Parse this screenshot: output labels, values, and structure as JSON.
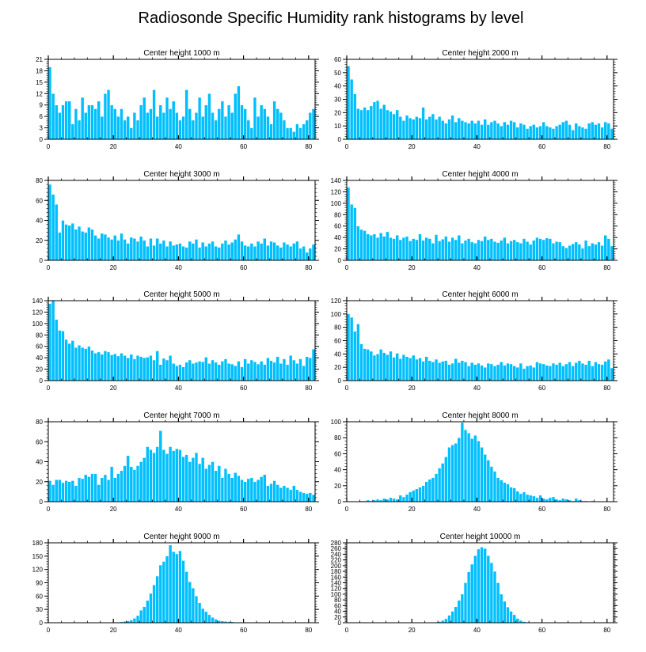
{
  "figure": {
    "title": "Radiosonde Specific Humidity rank histograms by level",
    "bar_color": "#00bfff",
    "bar_outline_color": "#ffffff"
  },
  "chart_data": [
    {
      "type": "bar",
      "title": "Center height 1000 m",
      "xlabel": "",
      "ylabel": "",
      "xlim": [
        0,
        82
      ],
      "ylim": [
        0,
        21
      ],
      "xticks": [
        0,
        20,
        40,
        60,
        80
      ],
      "yticks": [
        0,
        3,
        6,
        9,
        12,
        15,
        18,
        21
      ],
      "ytick_side": "left",
      "ytick_labels": [
        "0",
        "3",
        "6",
        "9",
        "12",
        "15",
        "18",
        "21"
      ],
      "xtick_labels": [
        "0",
        "20",
        "40",
        "60",
        "80"
      ],
      "values": [
        19,
        12,
        9,
        7,
        9,
        10,
        10,
        4,
        8,
        5,
        11,
        7,
        9,
        9,
        8,
        10,
        6,
        12,
        13,
        9,
        8,
        6,
        8,
        5,
        6,
        3,
        7,
        5,
        9,
        11,
        7,
        8,
        13,
        6,
        9,
        7,
        11,
        8,
        10,
        7,
        5,
        6,
        13,
        8,
        5,
        7,
        11,
        6,
        9,
        12,
        7,
        5,
        8,
        10,
        6,
        9,
        7,
        12,
        14,
        9,
        8,
        5,
        3,
        11,
        6,
        9,
        8,
        6,
        4,
        10,
        8,
        7,
        5,
        3,
        3,
        2,
        4,
        3,
        4,
        5,
        7,
        8
      ]
    },
    {
      "type": "bar",
      "title": "Center height 2000 m",
      "xlabel": "",
      "ylabel": "",
      "xlim": [
        0,
        82
      ],
      "ylim": [
        0,
        60
      ],
      "xticks": [
        0,
        20,
        40,
        60,
        80
      ],
      "yticks": [
        0,
        10,
        20,
        30,
        40,
        50,
        60
      ],
      "ytick_side": "left",
      "ytick_labels": [
        "0",
        "10",
        "20",
        "30",
        "40",
        "50",
        "60"
      ],
      "xtick_labels": [
        "0",
        "20",
        "40",
        "60",
        "80"
      ],
      "values": [
        55,
        45,
        34,
        23,
        22,
        24,
        22,
        25,
        28,
        29,
        23,
        26,
        22,
        21,
        19,
        22,
        17,
        14,
        18,
        16,
        15,
        17,
        16,
        24,
        15,
        17,
        19,
        15,
        17,
        14,
        12,
        15,
        18,
        13,
        16,
        14,
        13,
        12,
        14,
        12,
        14,
        11,
        15,
        11,
        13,
        14,
        12,
        10,
        13,
        11,
        14,
        13,
        9,
        12,
        11,
        8,
        10,
        11,
        9,
        10,
        13,
        10,
        9,
        8,
        10,
        11,
        13,
        14,
        11,
        7,
        12,
        10,
        9,
        8,
        12,
        13,
        11,
        12,
        9,
        13,
        12,
        8
      ]
    },
    {
      "type": "bar",
      "title": "Center height 3000 m",
      "xlabel": "",
      "ylabel": "",
      "xlim": [
        0,
        82
      ],
      "ylim": [
        0,
        80
      ],
      "xticks": [
        0,
        20,
        40,
        60,
        80
      ],
      "yticks": [
        0,
        20,
        40,
        60,
        80
      ],
      "ytick_side": "left",
      "ytick_labels": [
        "0",
        "20",
        "40",
        "60",
        "80"
      ],
      "xtick_labels": [
        "0",
        "20",
        "40",
        "60",
        "80"
      ],
      "values": [
        76,
        66,
        56,
        28,
        40,
        36,
        35,
        37,
        31,
        34,
        29,
        28,
        33,
        31,
        25,
        22,
        27,
        26,
        23,
        21,
        25,
        20,
        27,
        21,
        17,
        23,
        22,
        19,
        24,
        20,
        14,
        22,
        15,
        22,
        17,
        20,
        14,
        19,
        15,
        16,
        17,
        14,
        13,
        19,
        17,
        21,
        13,
        18,
        14,
        17,
        19,
        14,
        13,
        17,
        20,
        16,
        18,
        21,
        26,
        19,
        15,
        14,
        17,
        14,
        19,
        17,
        22,
        15,
        19,
        18,
        15,
        13,
        18,
        16,
        14,
        17,
        19,
        12,
        14,
        8,
        12,
        16
      ]
    },
    {
      "type": "bar",
      "title": "Center height 4000 m",
      "xlabel": "",
      "ylabel": "",
      "xlim": [
        0,
        82
      ],
      "ylim": [
        0,
        140
      ],
      "xticks": [
        0,
        20,
        40,
        60,
        80
      ],
      "yticks": [
        0,
        20,
        40,
        60,
        80,
        100,
        120,
        140
      ],
      "ytick_side": "left",
      "ytick_labels": [
        "0",
        "20",
        "40",
        "60",
        "80",
        "100",
        "120",
        "140"
      ],
      "xtick_labels": [
        "0",
        "20",
        "40",
        "60",
        "80"
      ],
      "values": [
        128,
        98,
        92,
        60,
        54,
        52,
        46,
        44,
        46,
        40,
        48,
        42,
        50,
        40,
        38,
        44,
        36,
        40,
        42,
        34,
        38,
        36,
        46,
        35,
        40,
        38,
        30,
        45,
        34,
        37,
        42,
        33,
        40,
        36,
        44,
        30,
        35,
        38,
        32,
        30,
        36,
        34,
        42,
        36,
        38,
        33,
        31,
        35,
        40,
        30,
        34,
        36,
        32,
        30,
        38,
        33,
        28,
        35,
        40,
        38,
        36,
        39,
        38,
        30,
        33,
        32,
        25,
        22,
        26,
        29,
        32,
        28,
        21,
        35,
        25,
        30,
        28,
        32,
        26,
        44,
        38,
        25
      ]
    },
    {
      "type": "bar",
      "title": "Center height 5000 m",
      "xlabel": "",
      "ylabel": "",
      "xlim": [
        0,
        82
      ],
      "ylim": [
        0,
        140
      ],
      "xticks": [
        0,
        20,
        40,
        60,
        80
      ],
      "yticks": [
        0,
        20,
        40,
        60,
        80,
        100,
        120,
        140
      ],
      "ytick_side": "left",
      "ytick_labels": [
        "0",
        "20",
        "40",
        "60",
        "80",
        "100",
        "120",
        "140"
      ],
      "xtick_labels": [
        "0",
        "20",
        "40",
        "60",
        "80"
      ],
      "values": [
        135,
        140,
        107,
        88,
        87,
        72,
        65,
        70,
        58,
        62,
        58,
        56,
        60,
        53,
        48,
        50,
        46,
        52,
        50,
        45,
        47,
        43,
        48,
        44,
        40,
        46,
        38,
        44,
        42,
        40,
        41,
        44,
        36,
        52,
        28,
        39,
        36,
        44,
        30,
        26,
        28,
        24,
        32,
        36,
        30,
        32,
        34,
        33,
        41,
        30,
        36,
        32,
        28,
        34,
        38,
        30,
        29,
        26,
        34,
        24,
        38,
        30,
        36,
        33,
        29,
        34,
        28,
        40,
        35,
        32,
        42,
        30,
        38,
        28,
        44,
        36,
        30,
        38,
        26,
        42,
        40,
        55
      ]
    },
    {
      "type": "bar",
      "title": "Center height 6000 m",
      "xlabel": "",
      "ylabel": "",
      "xlim": [
        0,
        82
      ],
      "ylim": [
        0,
        120
      ],
      "xticks": [
        0,
        20,
        40,
        60,
        80
      ],
      "yticks": [
        0,
        20,
        40,
        60,
        80,
        100,
        120
      ],
      "ytick_side": "left",
      "ytick_labels": [
        "0",
        "20",
        "40",
        "60",
        "80",
        "100",
        "120"
      ],
      "xtick_labels": [
        "0",
        "20",
        "40",
        "60",
        "80"
      ],
      "values": [
        100,
        95,
        74,
        85,
        55,
        48,
        47,
        44,
        38,
        40,
        47,
        42,
        39,
        44,
        35,
        41,
        33,
        39,
        36,
        34,
        38,
        32,
        34,
        29,
        36,
        30,
        28,
        32,
        27,
        29,
        30,
        24,
        26,
        33,
        27,
        30,
        28,
        22,
        27,
        24,
        26,
        23,
        20,
        26,
        25,
        22,
        24,
        28,
        23,
        26,
        25,
        22,
        20,
        26,
        18,
        22,
        23,
        20,
        28,
        26,
        25,
        23,
        22,
        26,
        24,
        27,
        22,
        25,
        28,
        22,
        27,
        30,
        26,
        24,
        30,
        22,
        28,
        25,
        24,
        29,
        32,
        19
      ]
    },
    {
      "type": "bar",
      "title": "Center height 7000 m",
      "xlabel": "",
      "ylabel": "",
      "xlim": [
        0,
        82
      ],
      "ylim": [
        0,
        80
      ],
      "xticks": [
        0,
        20,
        40,
        60,
        80
      ],
      "yticks": [
        0,
        20,
        40,
        60,
        80
      ],
      "ytick_side": "left",
      "ytick_labels": [
        "0",
        "20",
        "40",
        "60",
        "80"
      ],
      "xtick_labels": [
        "0",
        "20",
        "40",
        "60",
        "80"
      ],
      "values": [
        21,
        17,
        22,
        22,
        19,
        21,
        20,
        21,
        16,
        24,
        23,
        27,
        25,
        28,
        28,
        17,
        24,
        27,
        22,
        35,
        24,
        28,
        31,
        36,
        46,
        35,
        32,
        36,
        40,
        44,
        55,
        52,
        49,
        55,
        71,
        52,
        48,
        55,
        51,
        53,
        52,
        45,
        47,
        40,
        44,
        49,
        38,
        44,
        33,
        37,
        40,
        31,
        36,
        24,
        33,
        28,
        24,
        29,
        26,
        22,
        20,
        23,
        24,
        20,
        22,
        25,
        27,
        16,
        18,
        21,
        17,
        14,
        16,
        14,
        12,
        16,
        12,
        10,
        9,
        8,
        9,
        7
      ]
    },
    {
      "type": "bar",
      "title": "Center height 8000 m",
      "xlabel": "",
      "ylabel": "",
      "xlim": [
        0,
        82
      ],
      "ylim": [
        0,
        100
      ],
      "xticks": [
        0,
        20,
        40,
        60,
        80
      ],
      "yticks": [
        0,
        20,
        40,
        60,
        80,
        100
      ],
      "ytick_side": "left",
      "ytick_labels": [
        "0",
        "20",
        "40",
        "60",
        "80",
        "100"
      ],
      "xtick_labels": [
        "0",
        "20",
        "40",
        "60",
        "80"
      ],
      "values": [
        0,
        0,
        0,
        0,
        1,
        1,
        2,
        1,
        2,
        3,
        2,
        4,
        3,
        5,
        4,
        3,
        8,
        6,
        9,
        12,
        14,
        16,
        18,
        20,
        25,
        28,
        30,
        35,
        42,
        48,
        56,
        68,
        71,
        73,
        80,
        99,
        90,
        86,
        79,
        83,
        76,
        68,
        59,
        52,
        44,
        38,
        30,
        27,
        24,
        22,
        18,
        17,
        13,
        10,
        12,
        9,
        8,
        7,
        5,
        8,
        4,
        3,
        5,
        6,
        3,
        2,
        4,
        3,
        2,
        1,
        4,
        2,
        1,
        1,
        0,
        1,
        0,
        0,
        0,
        0,
        0,
        0
      ]
    },
    {
      "type": "bar",
      "title": "Center height 9000 m",
      "xlabel": "",
      "ylabel": "",
      "xlim": [
        0,
        82
      ],
      "ylim": [
        0,
        180
      ],
      "xticks": [
        0,
        20,
        40,
        60,
        80
      ],
      "yticks": [
        0,
        30,
        60,
        90,
        120,
        150,
        180
      ],
      "ytick_side": "left",
      "ytick_labels": [
        "0",
        "30",
        "60",
        "90",
        "120",
        "150",
        "180"
      ],
      "xtick_labels": [
        "0",
        "20",
        "40",
        "60",
        "80"
      ],
      "values": [
        0,
        0,
        0,
        0,
        0,
        0,
        0,
        0,
        0,
        0,
        0,
        0,
        0,
        0,
        0,
        0,
        0,
        0,
        0,
        0,
        1,
        1,
        2,
        3,
        4,
        6,
        10,
        16,
        28,
        36,
        50,
        66,
        85,
        105,
        130,
        138,
        150,
        175,
        160,
        155,
        162,
        140,
        115,
        92,
        78,
        60,
        45,
        32,
        25,
        18,
        12,
        8,
        5,
        4,
        3,
        2,
        2,
        1,
        1,
        1,
        1,
        0,
        0,
        0,
        0,
        0,
        0,
        0,
        0,
        0,
        0,
        0,
        0,
        0,
        0,
        0,
        0,
        0,
        0,
        0,
        0,
        0
      ]
    },
    {
      "type": "bar",
      "title": "Center height 10000 m",
      "xlabel": "",
      "ylabel": "",
      "xlim": [
        0,
        82
      ],
      "ylim": [
        0,
        280
      ],
      "xticks": [
        0,
        20,
        40,
        60,
        80
      ],
      "yticks": [
        0,
        20,
        40,
        60,
        80,
        100,
        120,
        140,
        160,
        180,
        200,
        220,
        240,
        260,
        280
      ],
      "ytick_side": "left",
      "ytick_labels": [
        "0",
        "20",
        "40",
        "60",
        "80",
        "100",
        "120",
        "140",
        "160",
        "180",
        "200",
        "220",
        "240",
        "260",
        "280"
      ],
      "xtick_labels": [
        "0",
        "20",
        "40",
        "60",
        "80"
      ],
      "values": [
        0,
        0,
        0,
        0,
        0,
        0,
        0,
        0,
        0,
        0,
        0,
        0,
        0,
        0,
        0,
        0,
        0,
        0,
        0,
        0,
        0,
        0,
        0,
        0,
        0,
        0,
        1,
        2,
        4,
        8,
        14,
        26,
        40,
        56,
        78,
        100,
        140,
        178,
        205,
        235,
        258,
        265,
        260,
        235,
        210,
        180,
        140,
        100,
        75,
        55,
        40,
        28,
        15,
        8,
        4,
        2,
        1,
        1,
        0,
        0,
        0,
        0,
        0,
        0,
        0,
        0,
        0,
        0,
        0,
        0,
        0,
        0,
        0,
        0,
        0,
        0,
        0,
        0,
        0,
        0,
        0,
        0
      ]
    }
  ]
}
